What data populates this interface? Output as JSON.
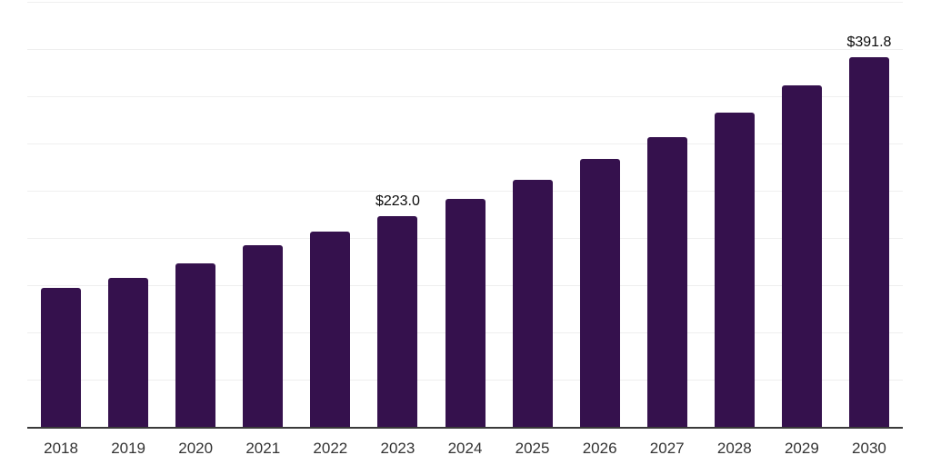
{
  "chart_data": {
    "type": "bar",
    "title": "",
    "xlabel": "",
    "ylabel": "",
    "categories": [
      "2018",
      "2019",
      "2020",
      "2021",
      "2022",
      "2023",
      "2024",
      "2025",
      "2026",
      "2027",
      "2028",
      "2029",
      "2030"
    ],
    "values": [
      147.3,
      158.0,
      172.7,
      192.5,
      206.9,
      223.0,
      241.5,
      261.6,
      283.4,
      306.5,
      332.4,
      361.3,
      391.8
    ],
    "data_labels": [
      {
        "category": "2023",
        "text": "$223.0"
      },
      {
        "category": "2030",
        "text": "$391.8"
      }
    ],
    "ylim": [
      0,
      450
    ],
    "gridline_step": 50,
    "grid": true,
    "legend": false,
    "y_tick_labels_visible": false
  },
  "colors": {
    "bar": "#35114d",
    "grid": "#efefef",
    "axis": "#3a3a3a",
    "tick_label": "#333333",
    "data_label": "#0a0a0a",
    "background": "#ffffff"
  }
}
